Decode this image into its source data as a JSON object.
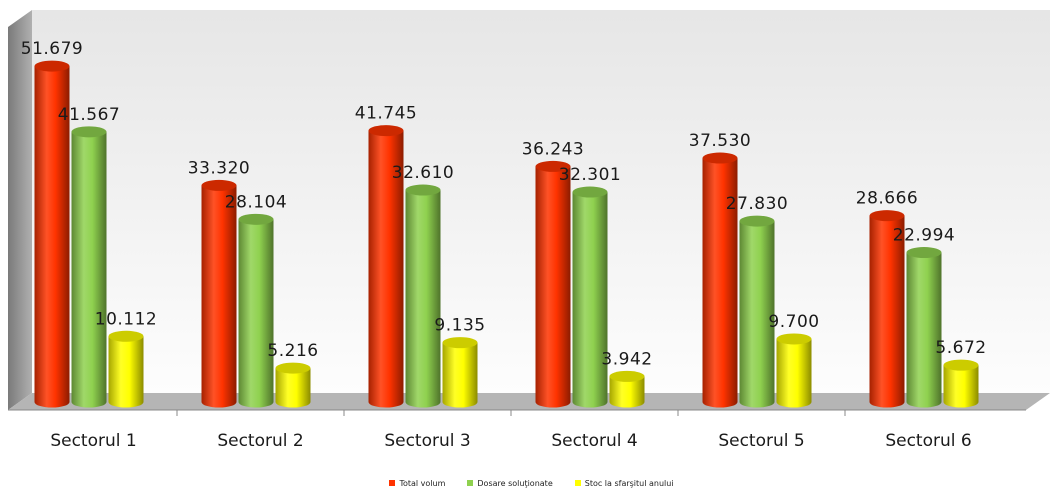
{
  "chart_data": {
    "type": "bar",
    "categories": [
      "Sectorul 1",
      "Sectorul 2",
      "Sectorul 3",
      "Sectorul 4",
      "Sectorul 5",
      "Sectorul 6"
    ],
    "series": [
      {
        "name": "Total volum",
        "color": "#ff3300",
        "values": [
          51679,
          33320,
          41745,
          36243,
          37530,
          28666
        ],
        "labels": [
          "51.679",
          "33.320",
          "41.745",
          "36.243",
          "37.530",
          "28.666"
        ]
      },
      {
        "name": "Dosare soluţionate",
        "color": "#8fd14f",
        "values": [
          41567,
          28104,
          32610,
          32301,
          27830,
          22994
        ],
        "labels": [
          "41.567",
          "28.104",
          "32.610",
          "32.301",
          "27.830",
          "22.994"
        ]
      },
      {
        "name": "Stoc la sfarşitul anului",
        "color": "#ffff00",
        "values": [
          10112,
          5216,
          9135,
          3942,
          9700,
          5672
        ],
        "labels": [
          "10.112",
          "5.216",
          "9.135",
          "3.942",
          "9.700",
          "5.672"
        ]
      }
    ],
    "title": "",
    "xlabel": "",
    "ylabel": "",
    "ylim": [
      0,
      60000
    ],
    "grid": false,
    "legend_position": "bottom",
    "style": "3d-cylinder"
  }
}
